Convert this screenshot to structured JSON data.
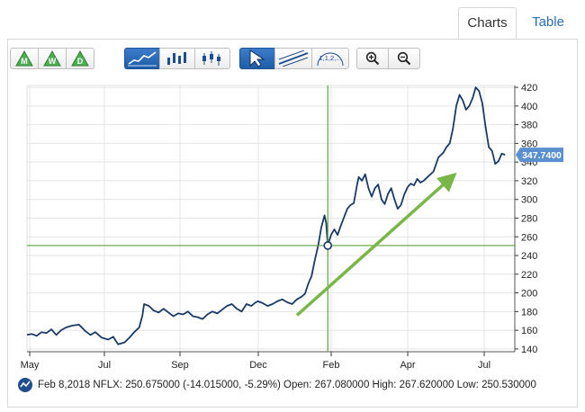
{
  "tabs": [
    {
      "label": "Charts",
      "active": true
    },
    {
      "label": "Table",
      "active": false
    }
  ],
  "toolbar": {
    "period_buttons": [
      {
        "label": "M",
        "name": "monthly"
      },
      {
        "label": "W",
        "name": "weekly"
      },
      {
        "label": "D",
        "name": "daily"
      }
    ],
    "chart_type_buttons": [
      {
        "icon": "line-chart-icon",
        "selected": true
      },
      {
        "icon": "bar-chart-icon",
        "selected": false
      },
      {
        "icon": "candlestick-icon",
        "selected": false
      }
    ],
    "tool_buttons": [
      {
        "icon": "pointer-arrow-icon",
        "selected": true
      },
      {
        "icon": "trendline-icon",
        "selected": false
      },
      {
        "icon": "fibonacci-icon",
        "label": "1,1,2,...",
        "selected": false
      }
    ],
    "zoom_buttons": [
      {
        "icon": "zoom-in-icon"
      },
      {
        "icon": "zoom-out-icon"
      }
    ]
  },
  "colors": {
    "line": "#1a3a66",
    "crosshair": "#5aa33a",
    "arrow": "#7ab648",
    "price_tag": "#5a8fd0",
    "tab_link": "#2a6cb5"
  },
  "price_tag": "347.7400",
  "status": {
    "date": "Feb 8,2018",
    "symbol": "NFLX:",
    "close": "250.675000",
    "change": "(-14.015000, -5.29%)",
    "open_label": "Open:",
    "open": "267.080000",
    "high_label": "High:",
    "high": "267.620000",
    "low_label": "Low:",
    "low": "250.530000"
  },
  "chart_data": {
    "type": "line",
    "title": "",
    "xlabel": "",
    "ylabel": "",
    "x_ticks": [
      "May",
      "Jul",
      "Sep",
      "Dec",
      "Feb",
      "Apr",
      "Jul"
    ],
    "y_ticks": [
      140,
      160,
      180,
      200,
      220,
      240,
      260,
      280,
      300,
      320,
      340,
      360,
      380,
      400,
      420
    ],
    "ylim": [
      137,
      422
    ],
    "xlim": [
      0,
      15
    ],
    "grid": true,
    "crosshair": {
      "x": 9.25,
      "y": 250.675
    },
    "trend_arrow": {
      "from": [
        8.3,
        176
      ],
      "to": [
        13.0,
        322
      ]
    },
    "last_price": 347.74,
    "series": [
      {
        "points": [
          [
            0.0,
            155
          ],
          [
            0.15,
            156
          ],
          [
            0.3,
            154
          ],
          [
            0.45,
            158
          ],
          [
            0.6,
            157
          ],
          [
            0.75,
            161
          ],
          [
            0.9,
            155
          ],
          [
            1.05,
            160
          ],
          [
            1.2,
            163
          ],
          [
            1.4,
            165
          ],
          [
            1.6,
            166
          ],
          [
            1.8,
            159
          ],
          [
            1.95,
            155
          ],
          [
            2.1,
            158
          ],
          [
            2.3,
            152
          ],
          [
            2.5,
            150
          ],
          [
            2.65,
            153
          ],
          [
            2.8,
            145
          ],
          [
            3.0,
            147
          ],
          [
            3.15,
            152
          ],
          [
            3.3,
            158
          ],
          [
            3.45,
            163
          ],
          [
            3.55,
            176
          ],
          [
            3.6,
            188
          ],
          [
            3.75,
            186
          ],
          [
            3.9,
            181
          ],
          [
            4.05,
            179
          ],
          [
            4.2,
            183
          ],
          [
            4.35,
            179
          ],
          [
            4.5,
            175
          ],
          [
            4.65,
            178
          ],
          [
            4.8,
            177
          ],
          [
            4.95,
            180
          ],
          [
            5.1,
            175
          ],
          [
            5.25,
            174
          ],
          [
            5.4,
            172
          ],
          [
            5.55,
            177
          ],
          [
            5.7,
            180
          ],
          [
            5.85,
            178
          ],
          [
            6.0,
            182
          ],
          [
            6.15,
            186
          ],
          [
            6.3,
            188
          ],
          [
            6.45,
            183
          ],
          [
            6.6,
            180
          ],
          [
            6.75,
            188
          ],
          [
            6.9,
            186
          ],
          [
            7.0,
            189
          ],
          [
            7.1,
            191
          ],
          [
            7.25,
            189
          ],
          [
            7.4,
            186
          ],
          [
            7.55,
            188
          ],
          [
            7.7,
            191
          ],
          [
            7.85,
            193
          ],
          [
            8.0,
            190
          ],
          [
            8.15,
            188
          ],
          [
            8.3,
            193
          ],
          [
            8.45,
            196
          ],
          [
            8.55,
            199
          ],
          [
            8.65,
            210
          ],
          [
            8.75,
            218
          ],
          [
            8.85,
            235
          ],
          [
            8.95,
            250
          ],
          [
            9.05,
            270
          ],
          [
            9.15,
            283
          ],
          [
            9.2,
            275
          ],
          [
            9.25,
            251
          ],
          [
            9.35,
            262
          ],
          [
            9.45,
            268
          ],
          [
            9.55,
            262
          ],
          [
            9.65,
            272
          ],
          [
            9.75,
            281
          ],
          [
            9.85,
            290
          ],
          [
            9.95,
            294
          ],
          [
            10.05,
            296
          ],
          [
            10.15,
            316
          ],
          [
            10.2,
            324
          ],
          [
            10.3,
            320
          ],
          [
            10.4,
            327
          ],
          [
            10.5,
            312
          ],
          [
            10.6,
            303
          ],
          [
            10.7,
            312
          ],
          [
            10.8,
            316
          ],
          [
            10.9,
            300
          ],
          [
            11.0,
            295
          ],
          [
            11.1,
            306
          ],
          [
            11.2,
            312
          ],
          [
            11.3,
            300
          ],
          [
            11.4,
            290
          ],
          [
            11.5,
            294
          ],
          [
            11.6,
            305
          ],
          [
            11.7,
            313
          ],
          [
            11.8,
            317
          ],
          [
            11.9,
            315
          ],
          [
            12.0,
            322
          ],
          [
            12.1,
            318
          ],
          [
            12.2,
            320
          ],
          [
            12.35,
            325
          ],
          [
            12.5,
            330
          ],
          [
            12.65,
            345
          ],
          [
            12.8,
            350
          ],
          [
            12.9,
            356
          ],
          [
            13.0,
            360
          ],
          [
            13.1,
            376
          ],
          [
            13.2,
            400
          ],
          [
            13.3,
            412
          ],
          [
            13.4,
            406
          ],
          [
            13.5,
            396
          ],
          [
            13.6,
            400
          ],
          [
            13.7,
            408
          ],
          [
            13.8,
            420
          ],
          [
            13.9,
            416
          ],
          [
            14.0,
            403
          ],
          [
            14.1,
            378
          ],
          [
            14.2,
            356
          ],
          [
            14.3,
            352
          ],
          [
            14.4,
            338
          ],
          [
            14.5,
            341
          ],
          [
            14.6,
            349
          ],
          [
            14.7,
            347.74
          ]
        ]
      }
    ]
  }
}
